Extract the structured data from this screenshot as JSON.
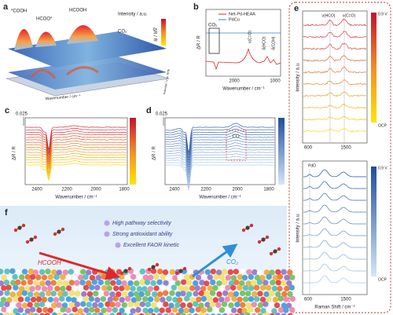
{
  "panels": {
    "a": {
      "label": "a",
      "peaks": [
        "*COOH",
        "HCOO*",
        "HCOOH",
        "CO₂"
      ],
      "colorbar_label": "Intensity / a.u.",
      "y_label": "ΔR / R",
      "x_label": "Wavenumber / cm⁻¹",
      "z_label": "Potential / V vs. RHE"
    },
    "b": {
      "label": "b",
      "legend": [
        "Net-Pd-HEAA",
        "PdCu"
      ],
      "y_label": "ΔR / R",
      "annotations": [
        "CO₂",
        "ν(C=O)",
        "δ(HCO)",
        "δ(COH)"
      ],
      "x_ticks": [
        "2000",
        "1000"
      ],
      "x_label": "Wavenumber / cm⁻¹"
    },
    "c": {
      "label": "c",
      "scale": "0.025",
      "y_label": "ΔR / R",
      "x_ticks": [
        "2400",
        "2200",
        "2000",
        "1800"
      ],
      "x_label": "Wavenumber / cm⁻¹"
    },
    "d": {
      "label": "d",
      "scale": "0.025",
      "y_label": "ΔR / R",
      "annotation": "CO",
      "x_ticks": [
        "2400",
        "2200",
        "2000",
        "1800"
      ],
      "x_label": "Wavenumber / cm⁻¹"
    },
    "e": {
      "label": "e",
      "top": {
        "annotations": [
          "ν(HCO)",
          "ν(C=O)"
        ],
        "colorbar": [
          "0.9 V",
          "OCP"
        ],
        "y_label": "Intensity / a.u.",
        "x_ticks": [
          "600",
          "1500"
        ]
      },
      "bottom": {
        "annotation": "PdO",
        "colorbar": [
          "0.9 V",
          "OCP"
        ],
        "y_label": "Intensity / a.u.",
        "x_ticks": [
          "600",
          "1500"
        ],
        "x_label": "Raman Shift / cm⁻¹"
      }
    },
    "f": {
      "label": "f",
      "features": [
        "High pathway selectivity",
        "Strong antioxidant ability",
        "Excellent FAOR kinetic"
      ],
      "reactant": "HCOOH",
      "product": "CO₂"
    }
  }
}
